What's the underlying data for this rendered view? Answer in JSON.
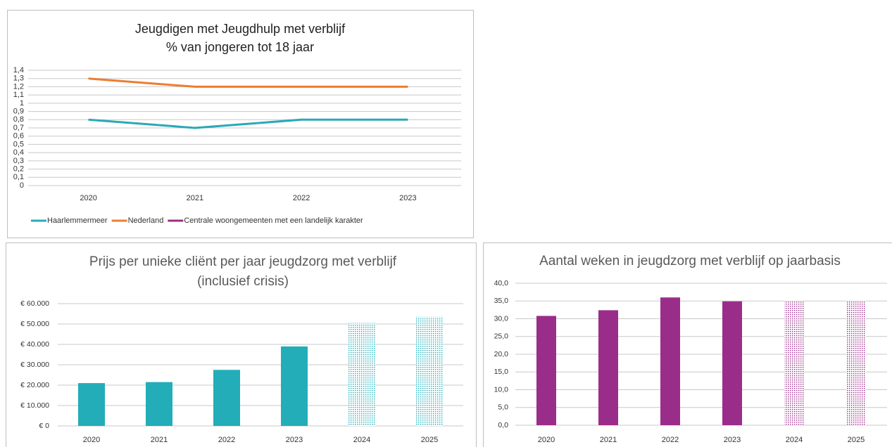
{
  "chart_data": [
    {
      "type": "line",
      "title": [
        "Jeugdigen met Jeugdhulp met verblijf",
        "% van jongeren tot 18 jaar"
      ],
      "categories": [
        "2020",
        "2021",
        "2022",
        "2023"
      ],
      "series": [
        {
          "name": "Haarlemmermeer",
          "color": "#2aa8b8",
          "values": [
            0.8,
            0.7,
            0.8,
            0.8
          ]
        },
        {
          "name": "Nederland",
          "color": "#ed7d31",
          "values": [
            1.3,
            1.2,
            1.2,
            1.2
          ]
        },
        {
          "name": "Centrale woongemeenten met een landelijk karakter",
          "color": "#9b2d8a",
          "values": [
            null,
            null,
            null,
            null
          ]
        }
      ],
      "ylim": [
        0,
        1.4
      ],
      "yticks": [
        0,
        {
          "value": 0.1,
          "label": "0,1"
        },
        {
          "value": 0.2,
          "label": "0,2"
        },
        {
          "value": 0.3,
          "label": "0,3"
        },
        {
          "value": 0.4,
          "label": "0,4"
        },
        {
          "value": 0.5,
          "label": "0,5"
        },
        {
          "value": 0.6,
          "label": "0,6"
        },
        {
          "value": 0.7,
          "label": "0,7"
        },
        {
          "value": 0.8,
          "label": "0,8"
        },
        {
          "value": 0.9,
          "label": "0,9"
        },
        1,
        {
          "value": 1.1,
          "label": "1,1"
        },
        {
          "value": 1.2,
          "label": "1,2"
        },
        {
          "value": 1.3,
          "label": "1,3"
        },
        {
          "value": 1.4,
          "label": "1,4"
        }
      ],
      "grid": true,
      "legend": "bottom"
    },
    {
      "type": "bar",
      "title": [
        "Prijs per unieke cliënt per jaar jeugdzorg met verblijf",
        "(inclusief crisis)"
      ],
      "categories": [
        "2020",
        "2021",
        "2022",
        "2023",
        "2024",
        "2025"
      ],
      "values": [
        21000,
        21500,
        27500,
        39000,
        50500,
        53500
      ],
      "styles": [
        "solid",
        "solid",
        "solid",
        "solid",
        "dotted",
        "dotted"
      ],
      "color": "#23adb9",
      "ylim": [
        0,
        60000
      ],
      "yticks": [
        {
          "value": 0,
          "label": "€ 0"
        },
        {
          "value": 10000,
          "label": "€ 10.000"
        },
        {
          "value": 20000,
          "label": "€ 20.000"
        },
        {
          "value": 30000,
          "label": "€ 30.000"
        },
        {
          "value": 40000,
          "label": "€ 40.000"
        },
        {
          "value": 50000,
          "label": "€ 50.000"
        },
        {
          "value": 60000,
          "label": "€ 60.000"
        }
      ],
      "grid": true
    },
    {
      "type": "bar",
      "title": [
        "Aantal weken in jeugdzorg met verblijf op jaarbasis"
      ],
      "categories": [
        "2020",
        "2021",
        "2022",
        "2023",
        "2024",
        "2025"
      ],
      "values": [
        30.8,
        32.4,
        36.0,
        34.9,
        35.0,
        35.0
      ],
      "styles": [
        "solid",
        "solid",
        "solid",
        "solid",
        "dotted",
        "dotted"
      ],
      "color": "#9b2d8a",
      "ylim": [
        0,
        40
      ],
      "yticks": [
        {
          "value": 0,
          "label": "0,0"
        },
        {
          "value": 5,
          "label": "5,0"
        },
        {
          "value": 10,
          "label": "10,0"
        },
        {
          "value": 15,
          "label": "15,0"
        },
        {
          "value": 20,
          "label": "20,0"
        },
        {
          "value": 25,
          "label": "25,0"
        },
        {
          "value": 30,
          "label": "30,0"
        },
        {
          "value": 35,
          "label": "35,0"
        },
        {
          "value": 40,
          "label": "40,0"
        }
      ],
      "grid": true
    }
  ]
}
